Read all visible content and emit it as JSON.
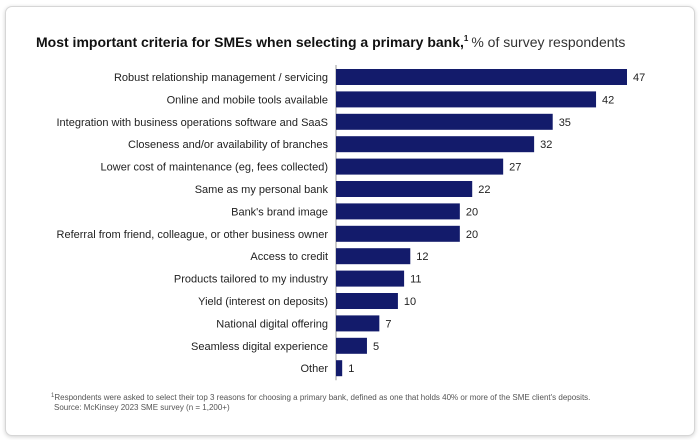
{
  "title": {
    "main": "Most important criteria for SMEs when selecting a primary bank,",
    "footnote_ref": "1",
    "unit": "% of survey respondents"
  },
  "footnote": {
    "marker": "1",
    "text": "Respondents were asked to select their top 3 reasons for choosing a primary bank, defined as one that holds 40% or more of the SME client's deposits.",
    "source": "Source: McKinsey 2023 SME survey (n = 1,200+)"
  },
  "chart_data": {
    "type": "bar",
    "orientation": "horizontal",
    "title": "Most important criteria for SMEs when selecting a primary bank,",
    "unit": "% of survey respondents",
    "categories": [
      "Robust relationship management / servicing",
      "Online and mobile tools available",
      "Integration with business operations software and SaaS",
      "Closeness and/or availability of branches",
      "Lower cost of maintenance (eg, fees collected)",
      "Same as my personal bank",
      "Bank's brand image",
      "Referral from friend, colleague, or other business owner",
      "Access to credit",
      "Products tailored to my industry",
      "Yield (interest on deposits)",
      "National digital offering",
      "Seamless digital experience",
      "Other"
    ],
    "values": [
      47,
      42,
      35,
      32,
      27,
      22,
      20,
      20,
      12,
      11,
      10,
      7,
      5,
      1
    ],
    "xlim": [
      0,
      47
    ],
    "bar_color": "#131b6b",
    "grid": false,
    "legend": "none",
    "data_labels": true
  }
}
